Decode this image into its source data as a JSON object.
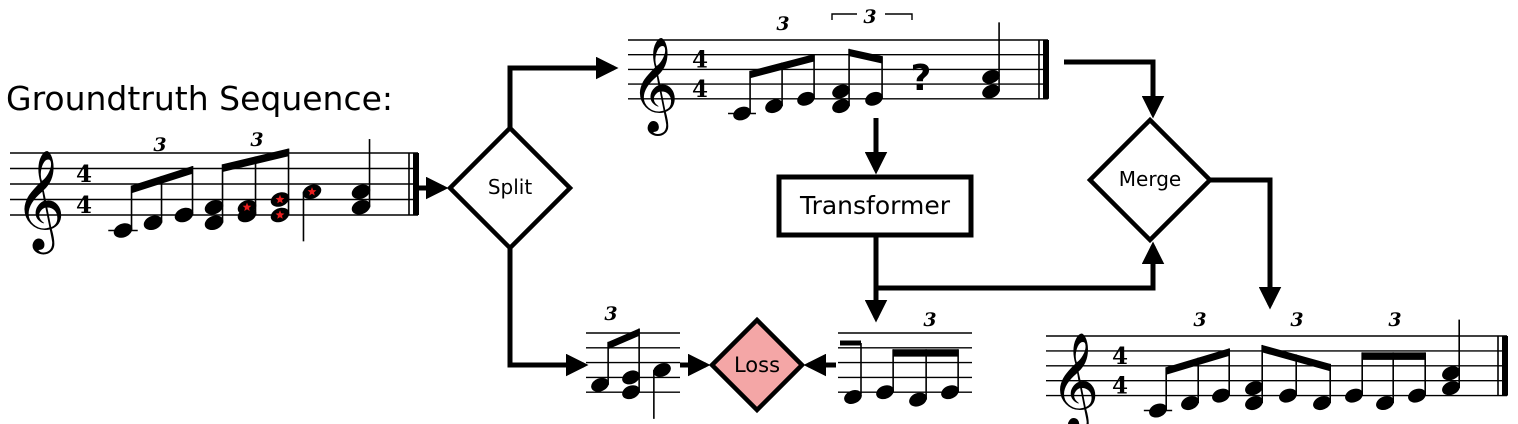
{
  "title": "Groundtruth Sequence:",
  "nodes": {
    "split": "Split",
    "merge": "Merge",
    "transformer": "Transformer",
    "loss": "Loss"
  },
  "time_signature": {
    "top": "4",
    "bottom": "4"
  },
  "tuplet_label": "3",
  "masked_symbol": "?",
  "clef_glyph": "𝄞",
  "colors": {
    "ink": "#000000",
    "loss_fill": "#f4a6a6",
    "mask_star": "#e81e1e",
    "background": "#ffffff"
  }
}
